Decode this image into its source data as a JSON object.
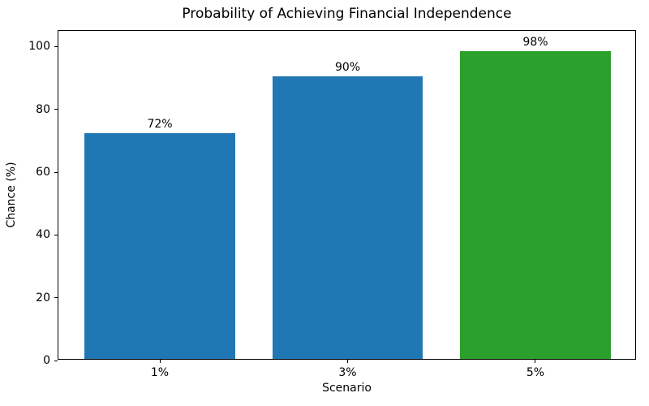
{
  "chart_data": {
    "type": "bar",
    "title": "Probability of Achieving Financial Independence",
    "xlabel": "Scenario",
    "ylabel": "Chance (%)",
    "categories": [
      "1%",
      "3%",
      "5%"
    ],
    "values": [
      72,
      90,
      98
    ],
    "value_labels": [
      "72%",
      "90%",
      "98%"
    ],
    "bar_colors": [
      "#1f77b4",
      "#1f77b4",
      "#2ca02c"
    ],
    "yticks": [
      0,
      20,
      40,
      60,
      80,
      100
    ],
    "ylim": [
      0,
      105
    ],
    "grid": false,
    "legend": "none",
    "background_color": "#ffffff",
    "axis_color": "#000000",
    "text_color": "#000000"
  }
}
